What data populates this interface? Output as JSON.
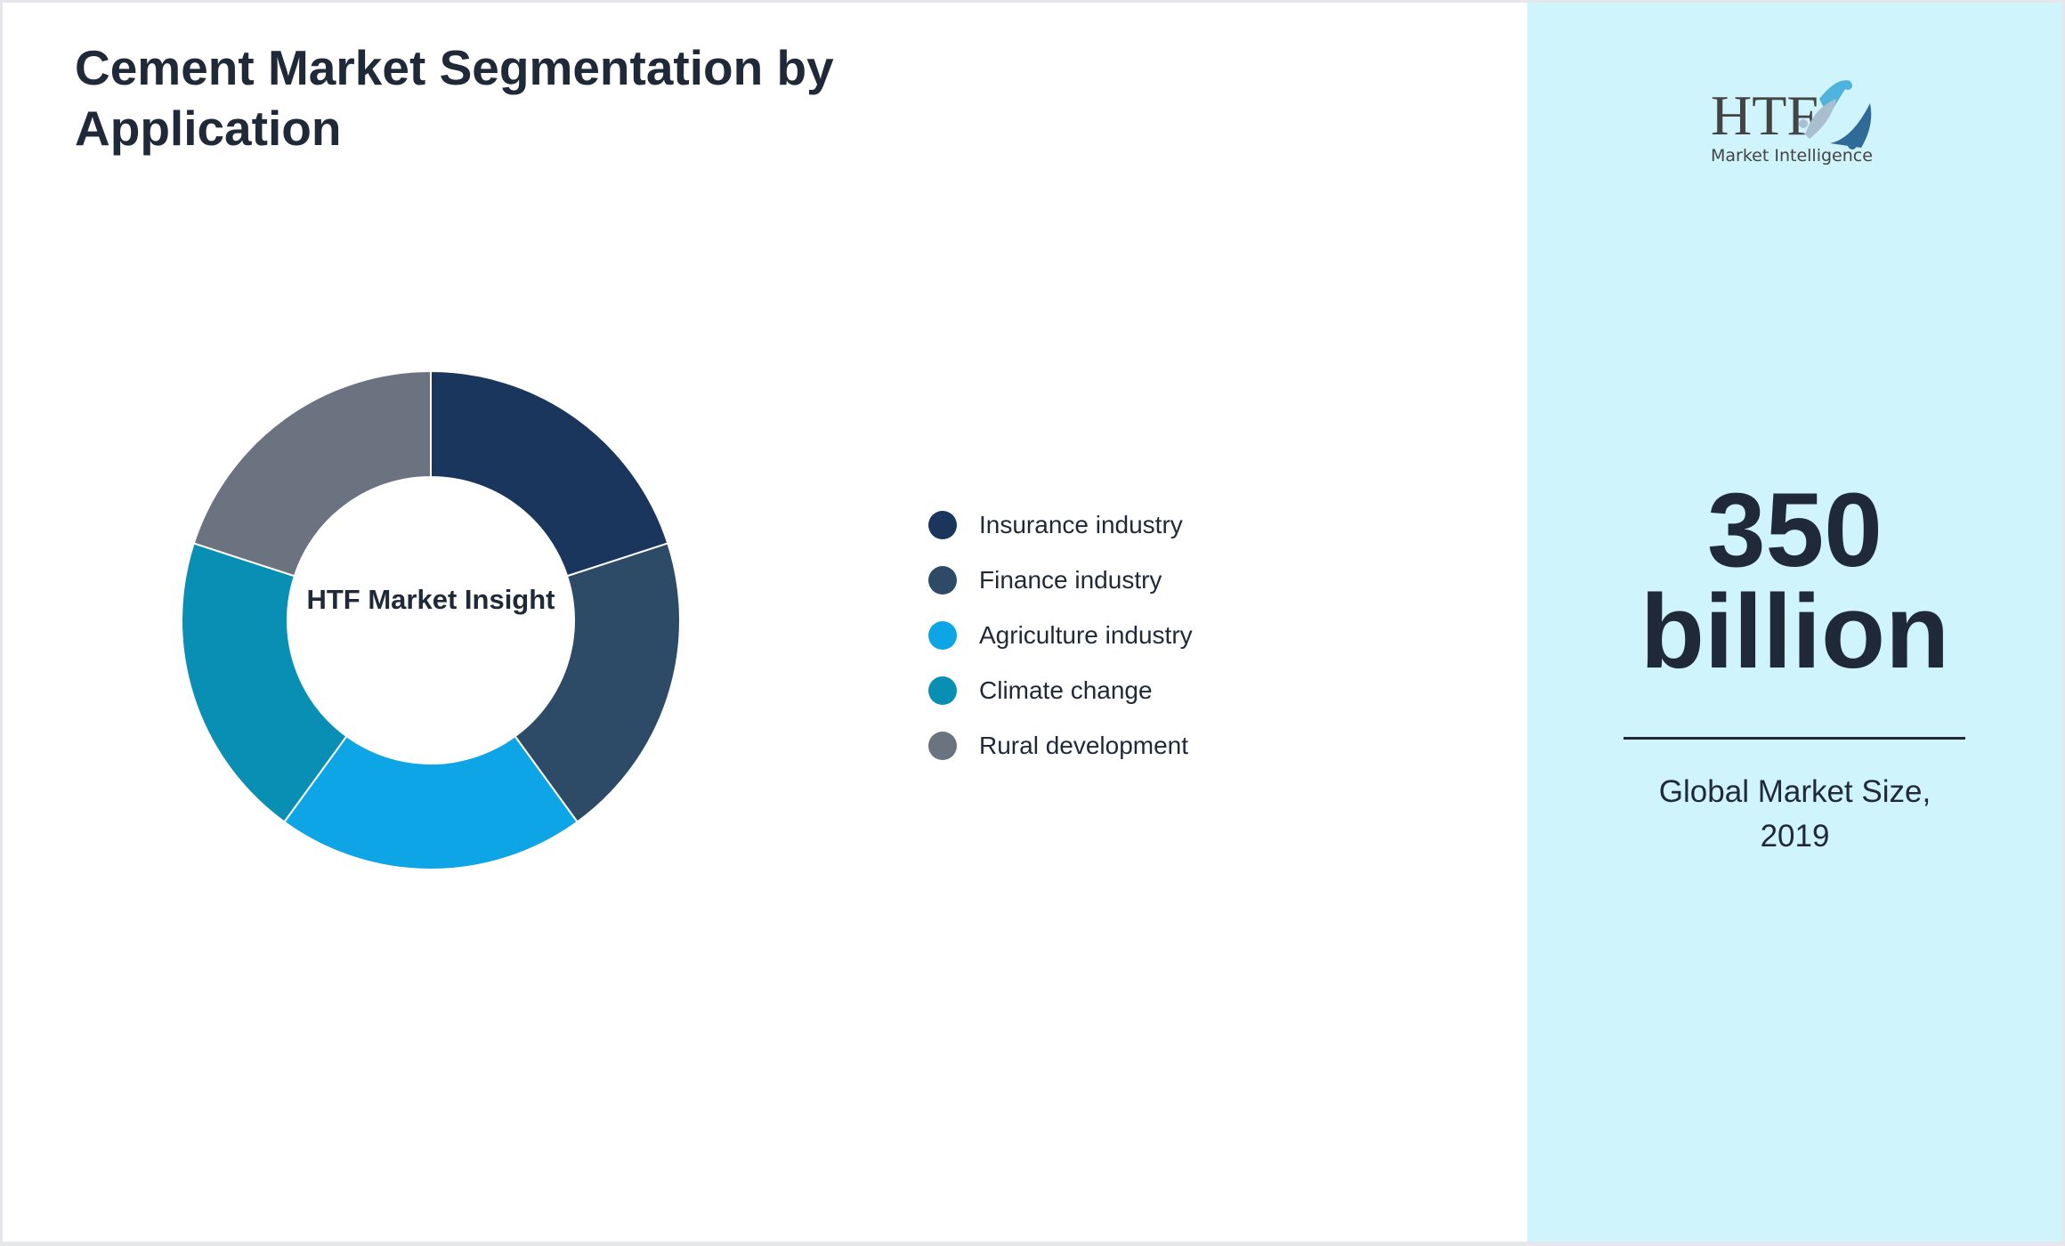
{
  "title": "Cement Market Segmentation by Application",
  "chart_data": {
    "type": "pie",
    "variant": "donut",
    "center_label": "HTF Market Insight",
    "categories": [
      "Insurance industry",
      "Finance industry",
      "Agriculture industry",
      "Climate change",
      "Rural development"
    ],
    "values": [
      20,
      20,
      20,
      20,
      20
    ],
    "colors": [
      "#1b365d",
      "#2d4a66",
      "#0ea5e6",
      "#0a8fb4",
      "#6b7280"
    ],
    "legend_position": "right"
  },
  "panel": {
    "logo_text": "HTF Market Intelligence",
    "value": "350 billion",
    "value_line1": "350",
    "value_line2": "billion",
    "caption": "Global Market Size, 2019",
    "background": "#cff4fc"
  }
}
